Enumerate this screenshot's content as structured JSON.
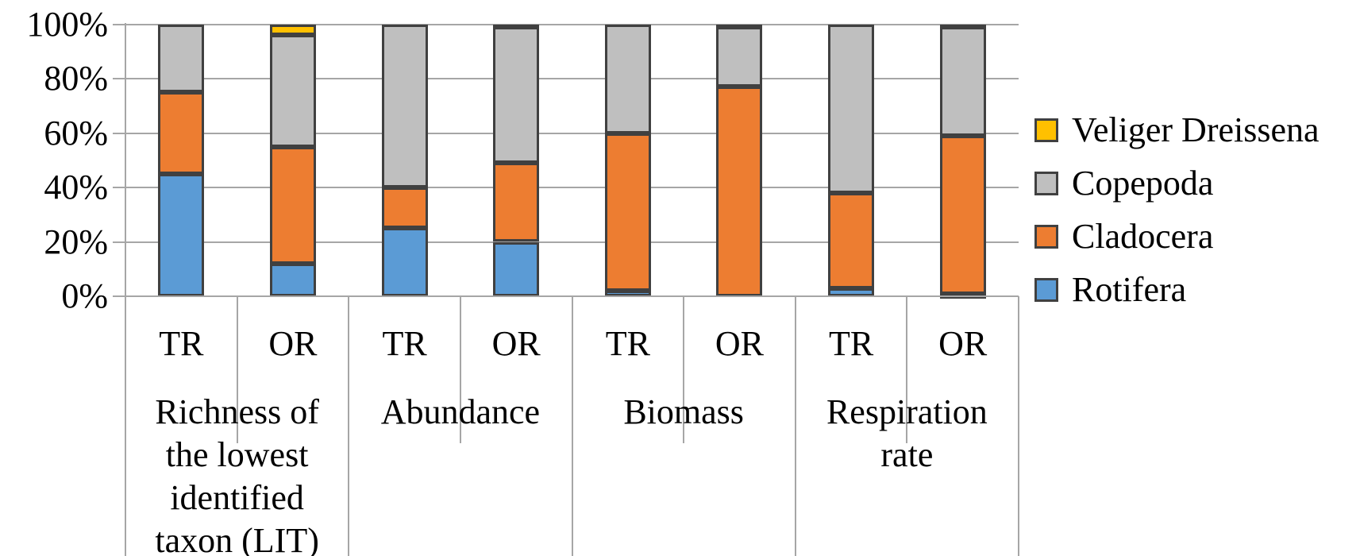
{
  "chart_data": {
    "type": "bar",
    "stacked": true,
    "percent_stacked": true,
    "title": "",
    "xlabel": "",
    "ylabel": "",
    "ylim": [
      0,
      100
    ],
    "grid": true,
    "legend_position": "right",
    "y_axis": {
      "tick_labels": [
        "100%",
        "80%",
        "60%",
        "40%",
        "20%",
        "0%"
      ],
      "tick_values": [
        100,
        80,
        60,
        40,
        20,
        0
      ]
    },
    "groups": [
      {
        "label": "Richness of the lowest identified taxon (LIT)",
        "display_lines": [
          "Richness of",
          "the lowest",
          "identified",
          "taxon (LIT)"
        ]
      },
      {
        "label": "Abundance",
        "display_lines": [
          "Abundance"
        ]
      },
      {
        "label": "Biomass",
        "display_lines": [
          "Biomass"
        ]
      },
      {
        "label": "Respiration rate",
        "display_lines": [
          "Respiration",
          "rate"
        ]
      }
    ],
    "categories": [
      "TR",
      "OR",
      "TR",
      "OR",
      "TR",
      "OR",
      "TR",
      "OR"
    ],
    "series": [
      {
        "name": "Rotifera",
        "color": "#5B9BD5",
        "values": [
          45,
          12,
          25,
          20,
          2,
          0,
          3,
          1
        ]
      },
      {
        "name": "Cladocera",
        "color": "#ED7D31",
        "values": [
          30,
          43,
          15,
          29,
          58,
          77,
          35,
          58
        ]
      },
      {
        "name": "Copepoda",
        "color": "#BFBFBF",
        "values": [
          25,
          41,
          60,
          50,
          40,
          22,
          62,
          40
        ]
      },
      {
        "name": "Veliger Dreissena",
        "color": "#FFC000",
        "values": [
          0,
          4,
          0,
          1,
          0,
          1,
          0,
          1
        ]
      }
    ],
    "legend_order": [
      "Veliger Dreissena",
      "Copepoda",
      "Cladocera",
      "Rotifera"
    ]
  },
  "colors": {
    "background": "#FFFFFF",
    "bar_border": "#404040",
    "gridline": "#A6A6A6",
    "axis_line": "#A6A6A6",
    "text": "#000000"
  }
}
